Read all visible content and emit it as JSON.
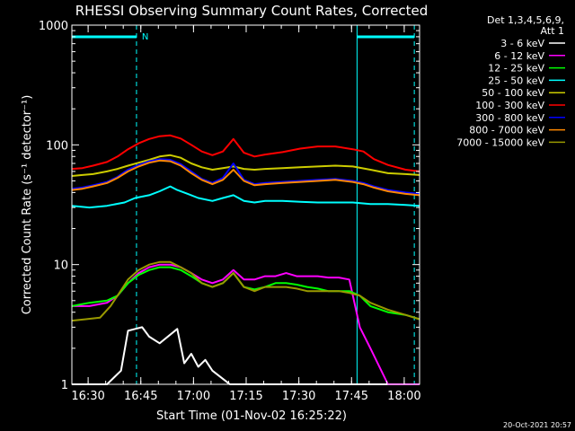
{
  "chart_data": {
    "type": "line",
    "title": "RHESSI Observing Summary Count Rates, Corrected",
    "xlabel": "Start Time (01-Nov-02 16:25:22)",
    "ylabel": "Corrected Count Rate (s⁻¹ detector⁻¹)",
    "y_scale": "log",
    "ylim": [
      1,
      1000
    ],
    "yticks": [
      1,
      10,
      100,
      1000
    ],
    "ytick_labels": [
      "1",
      "10",
      "100",
      "1000"
    ],
    "x_unit": "minutes since 16:25:22",
    "xlim": [
      0,
      99
    ],
    "xticks": [
      4.63,
      19.63,
      34.63,
      49.63,
      64.63,
      79.63,
      94.63
    ],
    "xtick_labels": [
      "16:30",
      "16:45",
      "17:00",
      "17:15",
      "17:30",
      "17:45",
      "18:00"
    ],
    "legend_header": [
      "Det 1,3,4,5,6,9,",
      "Att 1"
    ],
    "legend_position": "right",
    "footer": "20-Oct-2021 20:57",
    "marker_label": "N",
    "time_markers": [
      0,
      18.4,
      81.2,
      97.5
    ],
    "night_intervals": [
      [
        0,
        18.4
      ],
      [
        81.2,
        97.5
      ]
    ],
    "series": [
      {
        "name": "3 - 6 keV",
        "color": "#ffffff",
        "x": [
          0,
          10,
          14,
          16,
          18,
          20,
          22,
          25,
          28,
          30,
          32,
          34,
          36,
          38,
          40,
          45,
          50,
          60,
          70,
          78,
          80,
          82,
          85,
          90,
          99
        ],
        "y": [
          1,
          1,
          1.3,
          2.8,
          2.9,
          3,
          2.5,
          2.2,
          2.6,
          2.9,
          1.5,
          1.8,
          1.4,
          1.6,
          1.3,
          1,
          1,
          1,
          1,
          1,
          1,
          1,
          1,
          1,
          1
        ]
      },
      {
        "name": "6 - 12 keV",
        "color": "#ff00ff",
        "x": [
          0,
          5,
          10,
          13,
          16,
          19,
          22,
          25,
          28,
          31,
          34,
          37,
          40,
          43,
          46,
          49,
          52,
          55,
          58,
          61,
          64,
          67,
          70,
          73,
          76,
          79,
          82,
          85,
          90,
          95,
          99
        ],
        "y": [
          4.5,
          4.5,
          4.8,
          5.5,
          7,
          8.5,
          9.5,
          10,
          10,
          9.5,
          8.5,
          7.5,
          7,
          7.5,
          9,
          7.5,
          7.5,
          8,
          8,
          8.5,
          8,
          8,
          8,
          7.8,
          7.8,
          7.5,
          3,
          2,
          1,
          1,
          1
        ]
      },
      {
        "name": "12 - 25 keV",
        "color": "#00ff00",
        "x": [
          0,
          5,
          10,
          13,
          16,
          19,
          22,
          25,
          28,
          31,
          34,
          37,
          40,
          43,
          46,
          49,
          52,
          55,
          58,
          61,
          64,
          67,
          70,
          73,
          76,
          79,
          82,
          85,
          90,
          95,
          99
        ],
        "y": [
          4.5,
          4.8,
          5,
          5.5,
          7,
          8.2,
          9,
          9.5,
          9.5,
          9,
          8,
          7,
          6.5,
          7,
          8.5,
          6.5,
          6.2,
          6.5,
          7,
          7,
          6.8,
          6.5,
          6.3,
          6,
          6,
          6,
          5.5,
          4.5,
          4,
          3.8,
          3.5
        ]
      },
      {
        "name": "25 - 50 keV",
        "color": "#00ffff",
        "x": [
          0,
          5,
          10,
          15,
          18,
          22,
          25,
          28,
          30,
          33,
          36,
          40,
          43,
          46,
          49,
          52,
          55,
          60,
          65,
          70,
          75,
          80,
          85,
          90,
          95,
          99
        ],
        "y": [
          31,
          30,
          31,
          33,
          36,
          38,
          41,
          45,
          42,
          39,
          36,
          34,
          36,
          38,
          34,
          33,
          34,
          34,
          33.5,
          33,
          33,
          33,
          32,
          32,
          31.5,
          31
        ]
      },
      {
        "name": "50 - 100 keV",
        "color": "#cccc00",
        "x": [
          0,
          3,
          6,
          10,
          13,
          16,
          19,
          22,
          25,
          28,
          31,
          34,
          37,
          40,
          43,
          46,
          49,
          52,
          55,
          60,
          65,
          70,
          75,
          80,
          85,
          90,
          95,
          99
        ],
        "y": [
          55,
          56,
          57,
          60,
          63,
          67,
          71,
          75,
          80,
          82,
          78,
          70,
          65,
          62,
          64,
          66,
          63,
          62,
          63,
          64,
          65,
          66,
          67,
          66,
          62,
          58,
          57,
          56
        ]
      },
      {
        "name": "100 - 300 keV",
        "color": "#ff0000",
        "x": [
          0,
          3,
          6,
          10,
          13,
          16,
          19,
          22,
          25,
          28,
          31,
          34,
          37,
          40,
          43,
          46,
          49,
          52,
          55,
          60,
          65,
          70,
          75,
          80,
          83,
          86,
          90,
          95,
          99
        ],
        "y": [
          63,
          64,
          67,
          72,
          80,
          92,
          103,
          112,
          118,
          120,
          113,
          100,
          88,
          82,
          88,
          112,
          86,
          80,
          83,
          87,
          93,
          97,
          97,
          92,
          88,
          76,
          68,
          62,
          60
        ]
      },
      {
        "name": "300 - 800 keV",
        "color": "#0000ff",
        "x": [
          0,
          3,
          6,
          10,
          13,
          16,
          19,
          22,
          25,
          28,
          31,
          34,
          37,
          40,
          43,
          46,
          49,
          52,
          55,
          60,
          65,
          70,
          75,
          80,
          83,
          86,
          90,
          95,
          99
        ],
        "y": [
          43,
          44,
          46,
          49,
          54,
          62,
          68,
          73,
          76,
          75,
          69,
          60,
          52,
          48,
          53,
          70,
          51,
          47,
          48,
          49,
          50,
          51,
          52,
          50,
          48,
          45,
          42,
          40,
          39
        ]
      },
      {
        "name": "800 - 7000 keV",
        "color": "#ff8800",
        "x": [
          0,
          3,
          6,
          10,
          13,
          16,
          19,
          22,
          25,
          28,
          31,
          34,
          37,
          40,
          43,
          46,
          49,
          52,
          55,
          60,
          65,
          70,
          75,
          80,
          83,
          86,
          90,
          95,
          99
        ],
        "y": [
          42,
          43,
          45,
          48,
          53,
          60,
          66,
          71,
          74,
          73,
          67,
          58,
          51,
          47,
          51,
          62,
          50,
          46,
          47,
          48,
          49,
          50,
          51,
          49,
          47,
          44,
          41,
          39,
          38
        ]
      },
      {
        "name": "7000 - 15000 keV",
        "color": "#999900",
        "x": [
          0,
          4,
          8,
          11,
          13,
          16,
          19,
          22,
          25,
          28,
          31,
          34,
          37,
          40,
          43,
          46,
          49,
          52,
          55,
          58,
          61,
          64,
          67,
          70,
          73,
          76,
          79,
          82,
          85,
          90,
          95,
          99
        ],
        "y": [
          3.4,
          3.5,
          3.6,
          4.5,
          5.5,
          7.5,
          9,
          10,
          10.5,
          10.5,
          9.5,
          8.5,
          7,
          6.5,
          7,
          8.5,
          6.5,
          6,
          6.5,
          6.5,
          6.5,
          6.3,
          6,
          6,
          6,
          6,
          5.8,
          5.5,
          4.8,
          4.2,
          3.8,
          3.5
        ]
      }
    ]
  }
}
